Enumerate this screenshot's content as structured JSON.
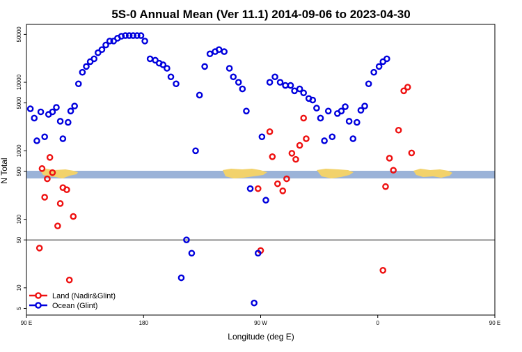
{
  "chart_data": {
    "type": "scatter",
    "title": "5S-0 Annual Mean (Ver 11.1)   2014-09-06 to 2023-04-30",
    "xlabel": "Longitude (deg E)",
    "ylabel": "N Total",
    "y_scale": "log",
    "xlim": [
      90,
      450
    ],
    "ylim": [
      4,
      70000
    ],
    "x_ticks": [
      {
        "value": 90,
        "label": "90 E"
      },
      {
        "value": 180,
        "label": "180"
      },
      {
        "value": 270,
        "label": "90 W"
      },
      {
        "value": 360,
        "label": "0"
      },
      {
        "value": 450,
        "label": "90 E"
      },
      {
        "value": 540,
        "label": "180"
      }
    ],
    "y_ticks": [
      {
        "value": 5,
        "label": "5"
      },
      {
        "value": 10,
        "label": "10"
      },
      {
        "value": 50,
        "label": "50"
      },
      {
        "value": 100,
        "label": "100"
      },
      {
        "value": 500,
        "label": "500"
      },
      {
        "value": 1000,
        "label": "1000"
      },
      {
        "value": 5000,
        "label": "5000"
      },
      {
        "value": 10000,
        "label": "10000"
      },
      {
        "value": 50000,
        "label": "50000"
      }
    ],
    "reference_line": 50,
    "colors": {
      "land": "#ee1111",
      "ocean": "#0000dd",
      "band": "#9bb3d8",
      "landmass": "#f2d26b"
    },
    "legend_position": "bottom-left",
    "series": [
      {
        "name": "Land (Nadir&Glint)",
        "points": [
          [
            100,
            38
          ],
          [
            102,
            550
          ],
          [
            104,
            210
          ],
          [
            106,
            390
          ],
          [
            108,
            800
          ],
          [
            110,
            480
          ],
          [
            114,
            80
          ],
          [
            116,
            170
          ],
          [
            118,
            290
          ],
          [
            121,
            270
          ],
          [
            123,
            13
          ],
          [
            126,
            110
          ],
          [
            268,
            280
          ],
          [
            270,
            35
          ],
          [
            277,
            1900
          ],
          [
            279,
            820
          ],
          [
            283,
            330
          ],
          [
            287,
            260
          ],
          [
            290,
            390
          ],
          [
            294,
            920
          ],
          [
            297,
            750
          ],
          [
            300,
            1200
          ],
          [
            303,
            3000
          ],
          [
            305,
            1500
          ],
          [
            364,
            18
          ],
          [
            366,
            300
          ],
          [
            369,
            780
          ],
          [
            372,
            520
          ],
          [
            376,
            2000
          ],
          [
            380,
            7500
          ],
          [
            383,
            8500
          ],
          [
            386,
            930
          ]
        ]
      },
      {
        "name": "Ocean (Glint)",
        "points": [
          [
            93,
            4100
          ],
          [
            96,
            3000
          ],
          [
            98,
            1400
          ],
          [
            101,
            3700
          ],
          [
            104,
            1600
          ],
          [
            107,
            3400
          ],
          [
            110,
            3700
          ],
          [
            113,
            4300
          ],
          [
            116,
            2700
          ],
          [
            118,
            1500
          ],
          [
            122,
            2600
          ],
          [
            124,
            3800
          ],
          [
            127,
            4500
          ],
          [
            130,
            9500
          ],
          [
            133,
            14000
          ],
          [
            136,
            17000
          ],
          [
            139,
            20000
          ],
          [
            142,
            22000
          ],
          [
            145,
            27000
          ],
          [
            148,
            30000
          ],
          [
            151,
            35000
          ],
          [
            154,
            40000
          ],
          [
            157,
            40000
          ],
          [
            160,
            44000
          ],
          [
            163,
            47000
          ],
          [
            166,
            48000
          ],
          [
            169,
            48000
          ],
          [
            172,
            48000
          ],
          [
            175,
            48000
          ],
          [
            178,
            48000
          ],
          [
            181,
            40000
          ],
          [
            185,
            22000
          ],
          [
            189,
            21000
          ],
          [
            192,
            19000
          ],
          [
            195,
            18000
          ],
          [
            198,
            16000
          ],
          [
            201,
            12000
          ],
          [
            205,
            9500
          ],
          [
            209,
            14
          ],
          [
            213,
            50
          ],
          [
            217,
            32
          ],
          [
            220,
            1000
          ],
          [
            223,
            6500
          ],
          [
            227,
            17000
          ],
          [
            231,
            26000
          ],
          [
            235,
            28000
          ],
          [
            238,
            30000
          ],
          [
            242,
            28000
          ],
          [
            246,
            16000
          ],
          [
            249,
            12000
          ],
          [
            253,
            10000
          ],
          [
            256,
            8000
          ],
          [
            259,
            3800
          ],
          [
            262,
            280
          ],
          [
            265,
            6
          ],
          [
            268,
            32
          ],
          [
            271,
            1600
          ],
          [
            274,
            190
          ],
          [
            277,
            10000
          ],
          [
            281,
            12000
          ],
          [
            285,
            10000
          ],
          [
            289,
            9000
          ],
          [
            293,
            9000
          ],
          [
            296,
            7500
          ],
          [
            300,
            8000
          ],
          [
            303,
            7000
          ],
          [
            307,
            5800
          ],
          [
            310,
            5500
          ],
          [
            313,
            4200
          ],
          [
            316,
            3000
          ],
          [
            319,
            1400
          ],
          [
            322,
            3800
          ],
          [
            325,
            1600
          ],
          [
            329,
            3500
          ],
          [
            332,
            3800
          ],
          [
            335,
            4400
          ],
          [
            338,
            2700
          ],
          [
            341,
            1500
          ],
          [
            344,
            2600
          ],
          [
            347,
            3900
          ],
          [
            350,
            4500
          ],
          [
            353,
            9500
          ],
          [
            357,
            14000
          ],
          [
            361,
            17000
          ],
          [
            364,
            20000
          ],
          [
            367,
            22000
          ]
        ]
      }
    ]
  }
}
